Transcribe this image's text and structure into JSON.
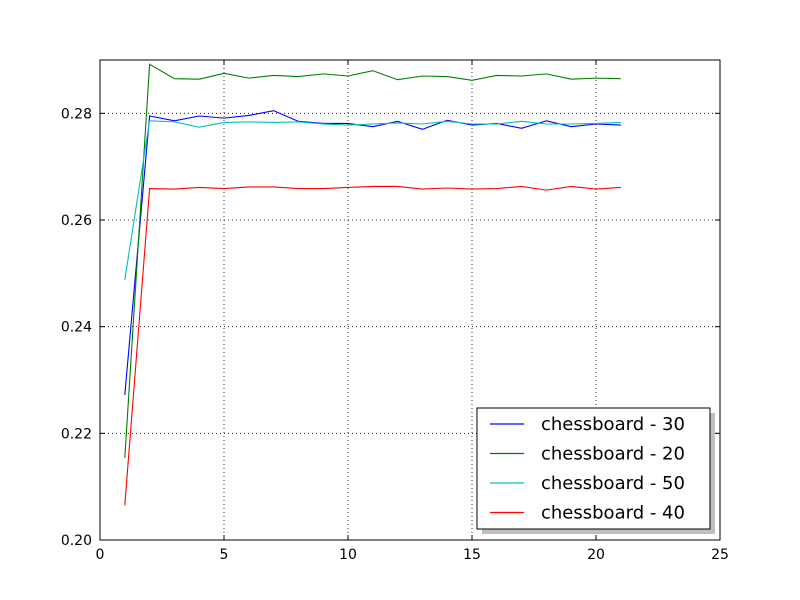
{
  "chart_data": {
    "type": "line",
    "title": "",
    "xlabel": "",
    "ylabel": "",
    "xlim": [
      0,
      25
    ],
    "ylim": [
      0.2,
      0.29
    ],
    "xticks": [
      0,
      5,
      10,
      15,
      20,
      25
    ],
    "xtick_labels": [
      "0",
      "5",
      "10",
      "15",
      "20",
      "25"
    ],
    "yticks": [
      0.2,
      0.22,
      0.24,
      0.26,
      0.28
    ],
    "ytick_labels": [
      "0.20",
      "0.22",
      "0.24",
      "0.26",
      "0.28"
    ],
    "grid": true,
    "legend_position": "bottom-right",
    "x": [
      1,
      2,
      3,
      4,
      5,
      6,
      7,
      8,
      9,
      10,
      11,
      12,
      13,
      14,
      15,
      16,
      17,
      18,
      19,
      20,
      21
    ],
    "series": [
      {
        "name": "chessboard - 30",
        "color": "#0000ff",
        "values": [
          0.2272,
          0.2795,
          0.2786,
          0.2795,
          0.2791,
          0.2796,
          0.2805,
          0.2785,
          0.2781,
          0.2781,
          0.2775,
          0.2785,
          0.277,
          0.2787,
          0.2778,
          0.2781,
          0.2772,
          0.2786,
          0.2775,
          0.278,
          0.2778
        ]
      },
      {
        "name": "chessboard - 20",
        "color": "#008000",
        "values": [
          0.2154,
          0.2892,
          0.2865,
          0.2864,
          0.2875,
          0.2866,
          0.2871,
          0.2869,
          0.2874,
          0.287,
          0.288,
          0.2863,
          0.287,
          0.2869,
          0.2862,
          0.2871,
          0.287,
          0.2874,
          0.2864,
          0.2866,
          0.2865
        ]
      },
      {
        "name": "chessboard - 50",
        "color": "#00bfbf",
        "values": [
          0.2488,
          0.2786,
          0.2784,
          0.2774,
          0.2783,
          0.2784,
          0.2783,
          0.2784,
          0.278,
          0.2778,
          0.278,
          0.2782,
          0.278,
          0.2785,
          0.278,
          0.278,
          0.2785,
          0.278,
          0.278,
          0.2781,
          0.2783
        ]
      },
      {
        "name": "chessboard - 40",
        "color": "#ff0000",
        "values": [
          0.2065,
          0.2659,
          0.2658,
          0.2661,
          0.2659,
          0.2662,
          0.2662,
          0.2659,
          0.2659,
          0.2661,
          0.2663,
          0.2663,
          0.2658,
          0.266,
          0.2658,
          0.2659,
          0.2663,
          0.2656,
          0.2663,
          0.2658,
          0.2661
        ]
      }
    ]
  }
}
